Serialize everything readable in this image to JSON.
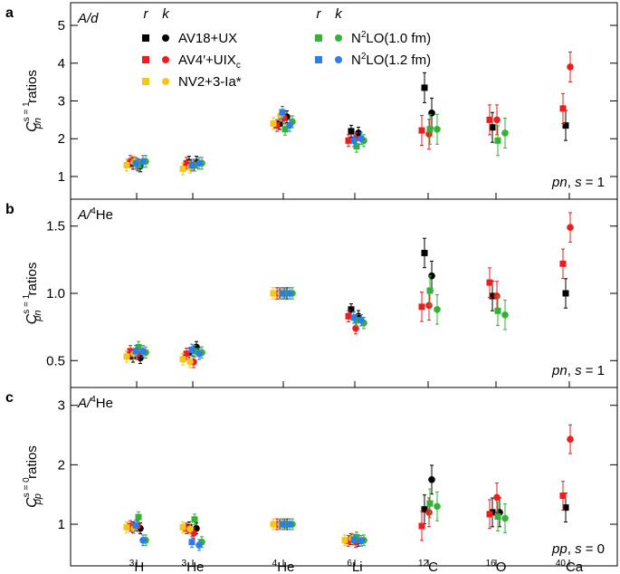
{
  "colors": {
    "AV18+UX": "#000000",
    "AV4'+UIXc": "#ee1c1c",
    "NV2+3-Ia*": "#f5c518",
    "N2LO(1.0 fm)": "#33b233",
    "N2LO(1.2 fm)": "#2b7de9"
  },
  "legend": {
    "r_header": "r",
    "k_header": "k",
    "entries": [
      {
        "key": "AV18+UX",
        "label": "AV18+UX",
        "sub": ""
      },
      {
        "key": "AV4'+UIXc",
        "label": "AV4′+UIX",
        "sub": "c"
      },
      {
        "key": "NV2+3-Ia*",
        "label": "NV2+3-Ia*",
        "sub": ""
      },
      {
        "key": "N2LO(1.0 fm)",
        "label": "N",
        "sup": "2",
        "rest": "LO(1.0 fm)"
      },
      {
        "key": "N2LO(1.2 fm)",
        "label": "N",
        "sup": "2",
        "rest": "LO(1.2 fm)"
      }
    ]
  },
  "nuclei": [
    {
      "mass": "3",
      "sym": "H"
    },
    {
      "mass": "3",
      "sym": "He"
    },
    {
      "mass": "4",
      "sym": "He"
    },
    {
      "mass": "6",
      "sym": "Li"
    },
    {
      "mass": "12",
      "sym": "C"
    },
    {
      "mass": "16",
      "sym": "O"
    },
    {
      "mass": "40",
      "sym": "Ca"
    }
  ],
  "chart_data": [
    {
      "type": "scatter",
      "panel": "a",
      "norm": "A/d",
      "ylim": [
        0.4,
        5.6
      ],
      "yticks": [
        1,
        2,
        3,
        4,
        5
      ],
      "ylabel": "C pn s=1 ratios",
      "annotation": "pn, s = 1",
      "series": [
        {
          "name": "AV18+UX",
          "r": [
            1.35,
            1.38,
            2.4,
            2.2,
            3.35,
            2.3,
            2.35
          ],
          "k": [
            1.28,
            1.38,
            2.58,
            2.15,
            2.68,
            null,
            null
          ]
        },
        {
          "name": "AV4'+UIXc",
          "r": [
            1.4,
            1.35,
            2.35,
            1.95,
            2.22,
            2.5,
            2.8
          ],
          "k": [
            1.32,
            1.3,
            2.55,
            2.0,
            2.12,
            2.5,
            3.9
          ]
        },
        {
          "name": "NV2+3-Ia*",
          "r": [
            1.3,
            1.2,
            2.4,
            null,
            null,
            null,
            null
          ],
          "k": [
            1.38,
            1.25,
            2.62,
            null,
            null,
            null,
            null
          ]
        },
        {
          "name": "N2LO(1.0 fm)",
          "r": [
            1.3,
            1.3,
            2.25,
            1.8,
            2.25,
            1.95,
            null
          ],
          "k": [
            1.4,
            1.35,
            2.45,
            1.95,
            2.25,
            2.15,
            null
          ]
        },
        {
          "name": "N2LO(1.2 fm)",
          "r": [
            1.35,
            1.3,
            2.7,
            1.95,
            null,
            null,
            null
          ],
          "k": [
            1.4,
            1.35,
            2.35,
            2.0,
            null,
            null,
            null
          ]
        }
      ]
    },
    {
      "type": "scatter",
      "panel": "b",
      "norm": "A/4He",
      "ylim": [
        0.3,
        1.7
      ],
      "yticks": [
        0.5,
        1.0,
        1.5
      ],
      "yticklabels": [
        "0.5",
        "1.0",
        "1.5"
      ],
      "ylabel": "C pn s=1 ratios",
      "annotation": "pn, s = 1",
      "series": [
        {
          "name": "AV18+UX",
          "r": [
            0.53,
            0.55,
            1.0,
            0.88,
            1.3,
            0.98,
            1.0
          ],
          "k": [
            0.52,
            0.6,
            1.0,
            0.83,
            1.13,
            null,
            null
          ]
        },
        {
          "name": "AV4'+UIXc",
          "r": [
            0.57,
            0.55,
            1.0,
            0.83,
            0.9,
            1.08,
            1.22
          ],
          "k": [
            0.55,
            0.49,
            1.0,
            0.74,
            0.91,
            0.98,
            1.49
          ]
        },
        {
          "name": "NV2+3-Ia*",
          "r": [
            0.53,
            0.51,
            1.0,
            null,
            null,
            null,
            null
          ],
          "k": [
            0.55,
            0.49,
            1.0,
            null,
            null,
            null,
            null
          ]
        },
        {
          "name": "N2LO(1.0 fm)",
          "r": [
            0.6,
            0.57,
            1.0,
            0.8,
            1.02,
            0.87,
            null
          ],
          "k": [
            0.56,
            0.56,
            1.0,
            0.78,
            0.88,
            0.84,
            null
          ]
        },
        {
          "name": "N2LO(1.2 fm)",
          "r": [
            0.57,
            0.58,
            1.0,
            0.82,
            null,
            null,
            null
          ],
          "k": [
            0.57,
            0.55,
            1.0,
            0.8,
            null,
            null,
            null
          ]
        }
      ]
    },
    {
      "type": "scatter",
      "panel": "c",
      "norm": "A/4He",
      "ylim": [
        0.3,
        3.3
      ],
      "yticks": [
        1,
        2,
        3
      ],
      "ylabel": "C pp s=0 ratios",
      "annotation": "pp, s = 0",
      "series": [
        {
          "name": "AV18+UX",
          "r": [
            0.95,
            0.95,
            1.0,
            0.75,
            1.25,
            1.2,
            1.28
          ],
          "k": [
            0.93,
            0.93,
            1.0,
            0.72,
            1.75,
            1.2,
            null
          ]
        },
        {
          "name": "AV4'+UIXc",
          "r": [
            0.97,
            0.93,
            1.0,
            0.72,
            0.97,
            1.17,
            1.48
          ],
          "k": [
            0.97,
            0.85,
            1.0,
            0.7,
            1.2,
            1.45,
            2.43
          ]
        },
        {
          "name": "NV2+3-Ia*",
          "r": [
            0.95,
            0.95,
            1.0,
            0.73,
            null,
            null,
            null
          ],
          "k": [
            0.93,
            0.92,
            1.0,
            0.76,
            null,
            null,
            null
          ]
        },
        {
          "name": "N2LO(1.0 fm)",
          "r": [
            1.12,
            1.08,
            1.0,
            0.78,
            1.35,
            1.13,
            null
          ],
          "k": [
            0.73,
            0.7,
            1.0,
            0.73,
            1.3,
            1.1,
            null
          ]
        },
        {
          "name": "N2LO(1.2 fm)",
          "r": [
            0.98,
            0.7,
            1.0,
            0.74,
            null,
            null,
            null
          ],
          "k": [
            0.73,
            0.65,
            1.0,
            0.72,
            null,
            null,
            null
          ]
        }
      ]
    }
  ]
}
